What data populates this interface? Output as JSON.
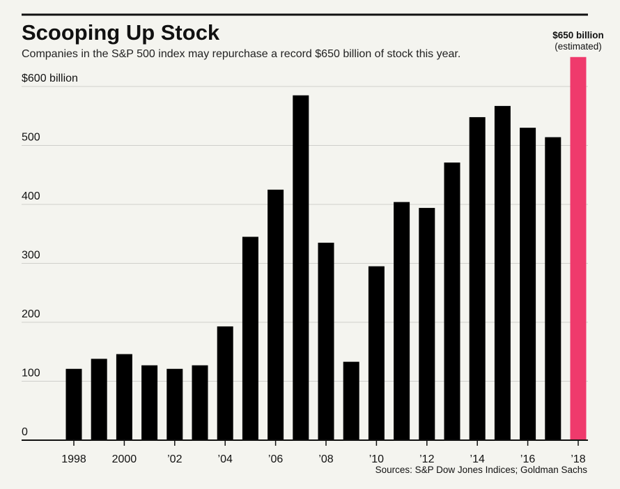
{
  "chart_data": {
    "type": "bar",
    "title": "Scooping Up Stock",
    "subtitle": "Companies in the S&P 500 index may repurchase a record $650 billion of stock this year.",
    "ylabel": "$600 billion",
    "ylim": [
      0,
      600
    ],
    "yticks": [
      {
        "value": 0,
        "label": "0"
      },
      {
        "value": 100,
        "label": "100"
      },
      {
        "value": 200,
        "label": "200"
      },
      {
        "value": 300,
        "label": "300"
      },
      {
        "value": 400,
        "label": "400"
      },
      {
        "value": 500,
        "label": "500"
      },
      {
        "value": 600,
        "label": "$600 billion"
      }
    ],
    "categories": [
      "1998",
      "1999",
      "2000",
      "2001",
      "2002",
      "2003",
      "2004",
      "2005",
      "2006",
      "2007",
      "2008",
      "2009",
      "2010",
      "2011",
      "2012",
      "2013",
      "2014",
      "2015",
      "2016",
      "2017",
      "2018"
    ],
    "values": [
      121,
      138,
      146,
      127,
      121,
      127,
      193,
      345,
      425,
      585,
      335,
      133,
      295,
      404,
      394,
      471,
      548,
      567,
      530,
      514,
      650
    ],
    "xtick_labels": [
      {
        "category": "1998",
        "label": "1998"
      },
      {
        "category": "2000",
        "label": "2000"
      },
      {
        "category": "2002",
        "label": "’02"
      },
      {
        "category": "2004",
        "label": "’04"
      },
      {
        "category": "2006",
        "label": "’06"
      },
      {
        "category": "2008",
        "label": "’08"
      },
      {
        "category": "2010",
        "label": "’10"
      },
      {
        "category": "2012",
        "label": "’12"
      },
      {
        "category": "2014",
        "label": "’14"
      },
      {
        "category": "2016",
        "label": "’16"
      },
      {
        "category": "2018",
        "label": "’18"
      }
    ],
    "highlight": {
      "category": "2018",
      "label": "$650 billion",
      "note": "(estimated)"
    },
    "source": "Sources: S&P Dow Jones Indices; Goldman Sachs",
    "colors": {
      "bar": "#000000",
      "highlight": "#ef3a6c",
      "grid": "#cfcfcb",
      "background": "#f4f4ef"
    }
  }
}
